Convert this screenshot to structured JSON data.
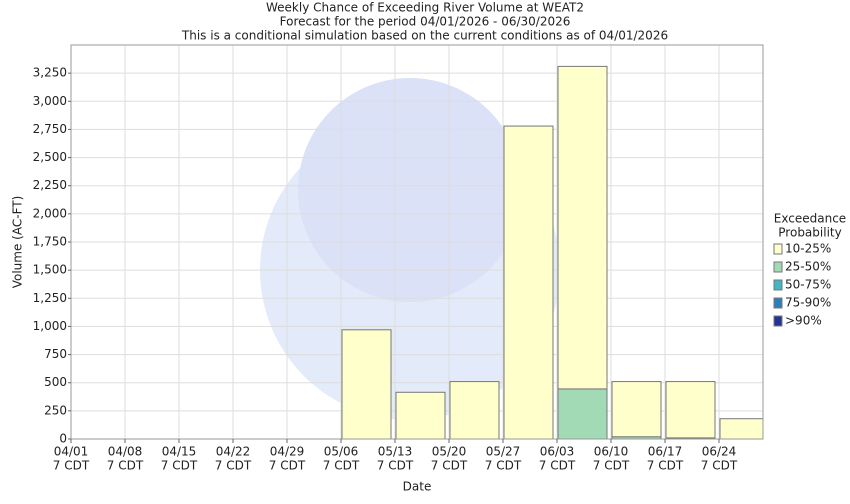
{
  "chart_data": {
    "type": "stacked_bar",
    "title": "Weekly Chance of Exceeding River Volume at WEAT2",
    "subtitle": "Forecast for the period 04/01/2026 - 06/30/2026",
    "note": "This is a conditional simulation based on the current conditions as of 04/01/2026",
    "x_label": "Date",
    "y_label": "Volume (AC-FT)",
    "legend_title_lines": [
      "Exceedance",
      "Probability"
    ],
    "legend_position": "right",
    "grid": true,
    "categories": [
      "04/01",
      "04/08",
      "04/15",
      "04/22",
      "04/29",
      "05/06",
      "05/13",
      "05/20",
      "05/27",
      "06/03",
      "06/10",
      "06/17",
      "06/24"
    ],
    "category_times": [
      "7 CDT",
      "7 CDT",
      "7 CDT",
      "7 CDT",
      "7 CDT",
      "7 CDT",
      "7 CDT",
      "7 CDT",
      "7 CDT",
      "7 CDT",
      "7 CDT",
      "7 CDT",
      "7 CDT"
    ],
    "series": [
      {
        "name": "10-25%",
        "color": "#ffffcc",
        "values": [
          0,
          0,
          0,
          0,
          0,
          970,
          415,
          510,
          2780,
          2865,
          490,
          500,
          180
        ]
      },
      {
        "name": "25-50%",
        "color": "#a1dab4",
        "values": [
          0,
          0,
          0,
          0,
          0,
          0,
          0,
          0,
          0,
          445,
          20,
          10,
          0
        ]
      },
      {
        "name": "50-75%",
        "color": "#41b6c4",
        "values": [
          0,
          0,
          0,
          0,
          0,
          0,
          0,
          0,
          0,
          0,
          0,
          0,
          0
        ]
      },
      {
        "name": "75-90%",
        "color": "#2c7fb8",
        "values": [
          0,
          0,
          0,
          0,
          0,
          0,
          0,
          0,
          0,
          0,
          0,
          0,
          0
        ]
      },
      {
        "name": ">90%",
        "color": "#253494",
        "values": [
          0,
          0,
          0,
          0,
          0,
          0,
          0,
          0,
          0,
          0,
          0,
          0,
          0
        ]
      }
    ],
    "ylim": [
      0,
      3500
    ],
    "yticks": [
      0,
      250,
      500,
      750,
      {
        "value": 1000,
        "label": "1,000"
      },
      {
        "value": 1250,
        "label": "1,250"
      },
      {
        "value": 1500,
        "label": "1,500"
      },
      {
        "value": 1750,
        "label": "1,750"
      },
      {
        "value": 2000,
        "label": "2,000"
      },
      {
        "value": 2250,
        "label": "2,250"
      },
      {
        "value": 2500,
        "label": "2,500"
      },
      {
        "value": 2750,
        "label": "2,750"
      },
      {
        "value": 3000,
        "label": "3,000"
      },
      {
        "value": 3250,
        "label": "3,250"
      }
    ]
  }
}
